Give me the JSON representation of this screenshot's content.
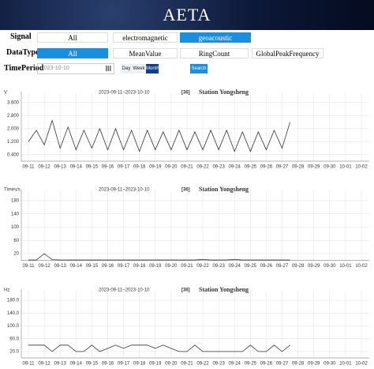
{
  "header": {
    "title": "AETA"
  },
  "controls": {
    "signal": {
      "label": "Signal",
      "options": [
        "All",
        "electromagnetic",
        "geoacoustic"
      ],
      "selected": 2
    },
    "data_type": {
      "label": "DataType",
      "options": [
        "All",
        "MeanValue",
        "RingCount",
        "GlobalPeakFrequency"
      ],
      "selected": 0
    },
    "time_period": {
      "label": "TimePeriod",
      "date": "2023-10-10",
      "buttons": [
        "Day",
        "Week",
        "Month"
      ],
      "selected": 2,
      "search": "Search"
    }
  },
  "chart_data": [
    {
      "type": "line",
      "axis_label": "V",
      "title": "2023-09-11~2023-10-10",
      "code": "[36]",
      "station": "Station Yongsheng",
      "color": "#333333",
      "grid": true,
      "categories": [
        "09-11",
        null,
        "09-12",
        null,
        "09-13",
        null,
        "09-14",
        null,
        "09-15",
        null,
        "09-16",
        null,
        "09-17",
        null,
        "09-18",
        null,
        "09-19",
        null,
        "09-20",
        null,
        "09-21",
        null,
        "09-22",
        null,
        "09-23",
        null,
        "09-24",
        null,
        "09-25",
        null,
        "09-26",
        null,
        "09-27",
        null,
        "09-28",
        null,
        "09-29",
        null,
        "09-30",
        null,
        "10-01",
        null,
        "10-02",
        null
      ],
      "values": [
        1.2,
        1.9,
        1.0,
        2.5,
        0.8,
        2.1,
        0.7,
        1.9,
        0.8,
        2.0,
        0.7,
        2.0,
        0.7,
        1.9,
        0.6,
        1.9,
        0.7,
        1.8,
        0.7,
        1.9,
        0.7,
        1.8,
        0.7,
        1.9,
        0.7,
        1.9,
        0.6,
        1.8,
        0.6,
        1.8,
        0.7,
        1.9,
        0.8,
        2.4,
        null,
        null,
        null,
        null,
        null,
        null,
        null,
        null,
        null,
        null
      ],
      "ylim": [
        0,
        4
      ],
      "yticks": [
        {
          "value": 0.4,
          "label": "0.400"
        },
        {
          "value": 1.2,
          "label": "1.200"
        },
        {
          "value": 2,
          "label": "2.000"
        },
        {
          "value": 2.8,
          "label": "2.800"
        },
        {
          "value": 3.6,
          "label": "3.600"
        }
      ]
    },
    {
      "type": "line",
      "axis_label": "Times/s",
      "title": "2023-09-11~2023-10-10",
      "code": "[36]",
      "station": "Station Yongsheng",
      "color": "#333333",
      "grid": true,
      "categories": [
        "09-11",
        null,
        "09-12",
        null,
        "09-13",
        null,
        "09-14",
        null,
        "09-15",
        null,
        "09-16",
        null,
        "09-17",
        null,
        "09-18",
        null,
        "09-19",
        null,
        "09-20",
        null,
        "09-21",
        null,
        "09-22",
        null,
        "09-23",
        null,
        "09-24",
        null,
        "09-25",
        null,
        "09-26",
        null,
        "09-27",
        null,
        "09-28",
        null,
        "09-29",
        null,
        "09-30",
        null,
        "10-01",
        null,
        "10-02",
        null
      ],
      "values": [
        1,
        1,
        20,
        2,
        1,
        1,
        1,
        1,
        1,
        1,
        1,
        1,
        1,
        1,
        1,
        1,
        1,
        1,
        1,
        1,
        1,
        1,
        3,
        1,
        1,
        1,
        3,
        1,
        1,
        1,
        1,
        1,
        1,
        1,
        null,
        null,
        null,
        null,
        null,
        null,
        null,
        null,
        null,
        null
      ],
      "ylim": [
        0,
        200
      ],
      "yticks": [
        20,
        60,
        100,
        140,
        180
      ]
    },
    {
      "type": "line",
      "axis_label": "Hz",
      "title": "2023-09-11~2023-10-10",
      "code": "[36]",
      "station": "Station Yongsheng",
      "color": "#333333",
      "grid": true,
      "categories": [
        "09-11",
        null,
        "09-12",
        null,
        "09-13",
        null,
        "09-14",
        null,
        "09-15",
        null,
        "09-16",
        null,
        "09-17",
        null,
        "09-18",
        null,
        "09-19",
        null,
        "09-20",
        null,
        "09-21",
        null,
        "09-22",
        null,
        "09-23",
        null,
        "09-24",
        null,
        "09-25",
        null,
        "09-26",
        null,
        "09-27",
        null,
        "09-28",
        null,
        "09-29",
        null,
        "09-30",
        null,
        "10-01",
        null,
        "10-02",
        null
      ],
      "values": [
        40,
        40,
        40,
        20,
        40,
        40,
        20,
        20,
        40,
        20,
        30,
        40,
        30,
        40,
        40,
        40,
        30,
        40,
        30,
        20,
        20,
        40,
        20,
        20,
        20,
        20,
        20,
        20,
        40,
        20,
        20,
        40,
        20,
        40,
        null,
        null,
        null,
        null,
        null,
        null,
        null,
        null,
        null,
        null
      ],
      "ylim": [
        0,
        200
      ],
      "yticks": [
        {
          "value": 20,
          "label": "20.0"
        },
        {
          "value": 60,
          "label": "60.0"
        },
        {
          "value": 100,
          "label": "100.0"
        },
        {
          "value": 140,
          "label": "140.0"
        },
        {
          "value": 180,
          "label": "180.0"
        }
      ]
    }
  ]
}
